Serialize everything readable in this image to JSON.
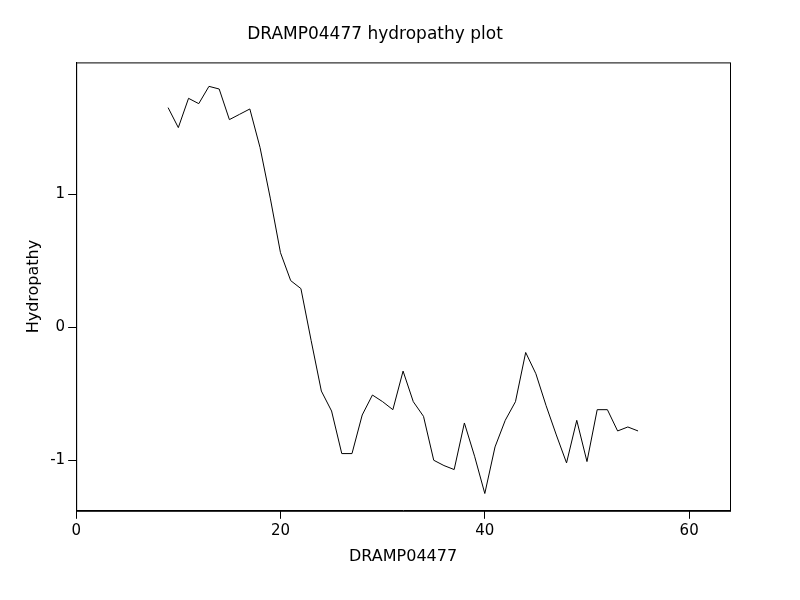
{
  "chart_data": {
    "type": "line",
    "title": "DRAMP04477 hydropathy plot",
    "x_label": "DRAMP04477",
    "y_label": "Hydropathy",
    "x": [
      9,
      10,
      11,
      12,
      13,
      14,
      15,
      16,
      17,
      18,
      19,
      20,
      21,
      22,
      23,
      24,
      25,
      26,
      27,
      28,
      29,
      30,
      31,
      32,
      33,
      34,
      35,
      36,
      37,
      38,
      39,
      40,
      41,
      42,
      43,
      44,
      45,
      46,
      47,
      48,
      49,
      50,
      51,
      52,
      53,
      54,
      55
    ],
    "values": [
      1.65,
      1.5,
      1.72,
      1.68,
      1.81,
      1.79,
      1.56,
      1.6,
      1.64,
      1.35,
      0.97,
      0.56,
      0.35,
      0.29,
      -0.1,
      -0.48,
      -0.63,
      -0.95,
      -0.95,
      -0.66,
      -0.51,
      -0.56,
      -0.62,
      -0.33,
      -0.56,
      -0.67,
      -1.0,
      -1.04,
      -1.07,
      -0.72,
      -0.97,
      -1.25,
      -0.9,
      -0.7,
      -0.56,
      -0.19,
      -0.35,
      -0.59,
      -0.81,
      -1.02,
      -0.7,
      -1.01,
      -0.62,
      -0.62,
      -0.78,
      -0.75,
      -0.78
    ],
    "color": "#000000",
    "xlim": [
      0,
      64
    ],
    "xticks": [
      0,
      20,
      40,
      60
    ],
    "ylim": [
      -1.38,
      1.99
    ],
    "yticks": [
      -1,
      0,
      1
    ],
    "grid": false
  }
}
